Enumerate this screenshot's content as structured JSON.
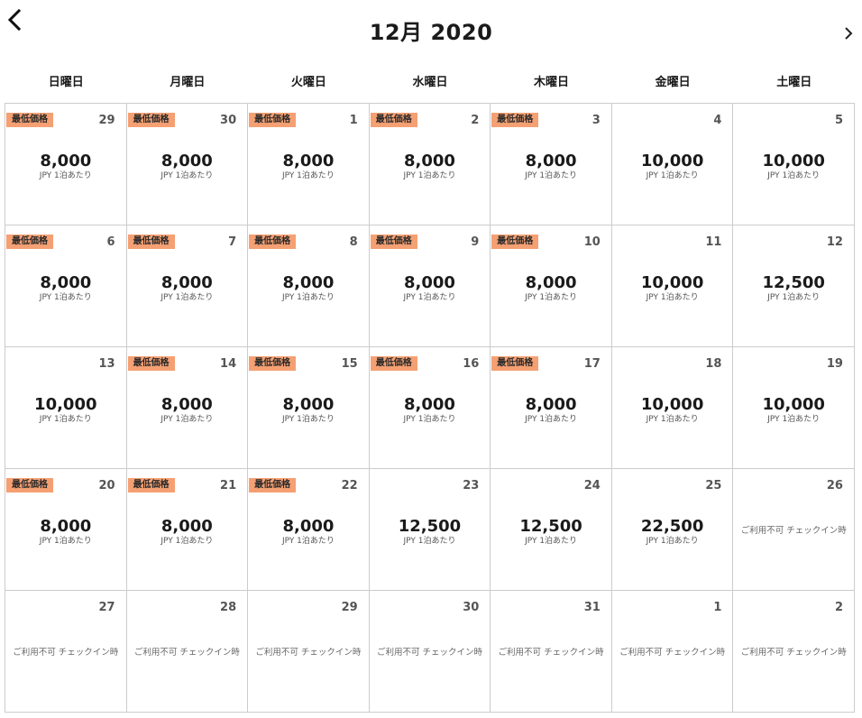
{
  "header": {
    "title": "12月 2020"
  },
  "weekdays": [
    "日曜日",
    "月曜日",
    "火曜日",
    "水曜日",
    "木曜日",
    "金曜日",
    "土曜日"
  ],
  "colors": {
    "badge": "#f5a073",
    "border": "#cccccc"
  },
  "calendar": {
    "cells": [
      {
        "day": "29",
        "badge": "最低価格",
        "price": "8,000",
        "sub": "JPY 1泊あたり"
      },
      {
        "day": "30",
        "badge": "最低価格",
        "price": "8,000",
        "sub": "JPY 1泊あたり"
      },
      {
        "day": "1",
        "badge": "最低価格",
        "price": "8,000",
        "sub": "JPY 1泊あたり"
      },
      {
        "day": "2",
        "badge": "最低価格",
        "price": "8,000",
        "sub": "JPY 1泊あたり"
      },
      {
        "day": "3",
        "badge": "最低価格",
        "price": "8,000",
        "sub": "JPY 1泊あたり"
      },
      {
        "day": "4",
        "price": "10,000",
        "sub": "JPY 1泊あたり"
      },
      {
        "day": "5",
        "price": "10,000",
        "sub": "JPY 1泊あたり"
      },
      {
        "day": "6",
        "badge": "最低価格",
        "price": "8,000",
        "sub": "JPY 1泊あたり"
      },
      {
        "day": "7",
        "badge": "最低価格",
        "price": "8,000",
        "sub": "JPY 1泊あたり"
      },
      {
        "day": "8",
        "badge": "最低価格",
        "price": "8,000",
        "sub": "JPY 1泊あたり"
      },
      {
        "day": "9",
        "badge": "最低価格",
        "price": "8,000",
        "sub": "JPY 1泊あたり"
      },
      {
        "day": "10",
        "badge": "最低価格",
        "price": "8,000",
        "sub": "JPY 1泊あたり"
      },
      {
        "day": "11",
        "price": "10,000",
        "sub": "JPY 1泊あたり"
      },
      {
        "day": "12",
        "price": "12,500",
        "sub": "JPY 1泊あたり"
      },
      {
        "day": "13",
        "price": "10,000",
        "sub": "JPY 1泊あたり"
      },
      {
        "day": "14",
        "badge": "最低価格",
        "price": "8,000",
        "sub": "JPY 1泊あたり"
      },
      {
        "day": "15",
        "badge": "最低価格",
        "price": "8,000",
        "sub": "JPY 1泊あたり"
      },
      {
        "day": "16",
        "badge": "最低価格",
        "price": "8,000",
        "sub": "JPY 1泊あたり"
      },
      {
        "day": "17",
        "badge": "最低価格",
        "price": "8,000",
        "sub": "JPY 1泊あたり"
      },
      {
        "day": "18",
        "price": "10,000",
        "sub": "JPY 1泊あたり"
      },
      {
        "day": "19",
        "price": "10,000",
        "sub": "JPY 1泊あたり"
      },
      {
        "day": "20",
        "badge": "最低価格",
        "price": "8,000",
        "sub": "JPY 1泊あたり"
      },
      {
        "day": "21",
        "badge": "最低価格",
        "price": "8,000",
        "sub": "JPY 1泊あたり"
      },
      {
        "day": "22",
        "badge": "最低価格",
        "price": "8,000",
        "sub": "JPY 1泊あたり"
      },
      {
        "day": "23",
        "price": "12,500",
        "sub": "JPY 1泊あたり"
      },
      {
        "day": "24",
        "price": "12,500",
        "sub": "JPY 1泊あたり"
      },
      {
        "day": "25",
        "price": "22,500",
        "sub": "JPY 1泊あたり"
      },
      {
        "day": "26",
        "unavailable": "ご利用不可 チェックイン時"
      },
      {
        "day": "27",
        "unavailable": "ご利用不可 チェックイン時"
      },
      {
        "day": "28",
        "unavailable": "ご利用不可 チェックイン時"
      },
      {
        "day": "29",
        "unavailable": "ご利用不可 チェックイン時"
      },
      {
        "day": "30",
        "unavailable": "ご利用不可 チェックイン時"
      },
      {
        "day": "31",
        "unavailable": "ご利用不可 チェックイン時"
      },
      {
        "day": "1",
        "unavailable": "ご利用不可 チェックイン時"
      },
      {
        "day": "2",
        "unavailable": "ご利用不可 チェックイン時"
      }
    ]
  }
}
